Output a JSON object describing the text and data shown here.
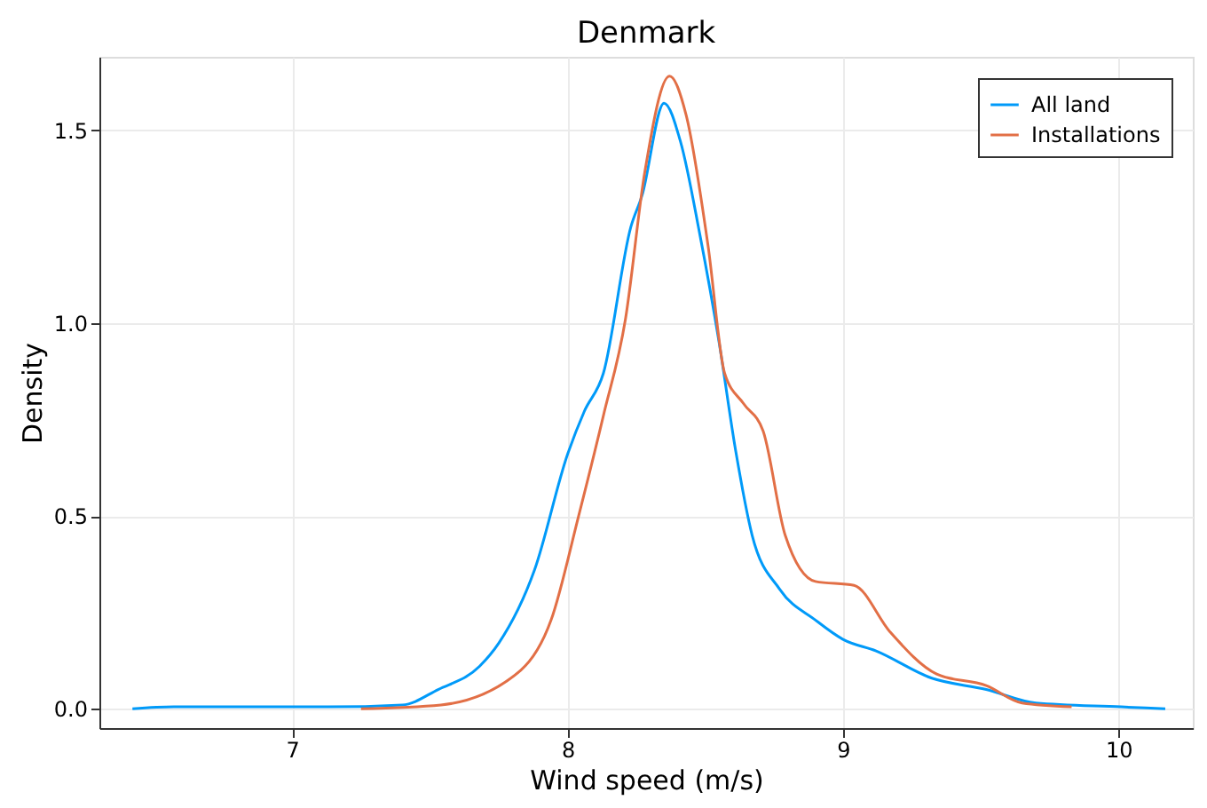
{
  "chart_data": {
    "type": "line",
    "title": "Denmark",
    "xlabel": "Wind speed (m/s)",
    "ylabel": "Density",
    "xlim": [
      6.3,
      10.27
    ],
    "ylim": [
      -0.05,
      1.69
    ],
    "xticks": [
      7,
      8,
      9,
      10
    ],
    "yticks": [
      {
        "value": 0,
        "label": "0.0"
      },
      {
        "value": 0.5,
        "label": "0.5"
      },
      {
        "value": 1,
        "label": "1.0"
      },
      {
        "value": 1.5,
        "label": "1.5"
      }
    ],
    "grid": true,
    "legend": "top right",
    "line_style": "solid",
    "marker": "none",
    "series": [
      {
        "name": "All land",
        "color": "#009af9",
        "x": [
          6.42,
          6.57,
          6.8,
          7.13,
          7.4,
          7.53,
          7.68,
          7.75,
          7.88,
          8.0,
          8.06,
          8.13,
          8.23,
          8.27,
          8.35,
          8.41,
          8.48,
          8.55,
          8.61,
          8.67,
          8.77,
          8.9,
          9.0,
          9.12,
          9.32,
          9.52,
          9.7,
          10.01,
          10.17
        ],
        "values": [
          0,
          0.005,
          0.005,
          0.005,
          0.01,
          0.05,
          0.11,
          0.17,
          0.36,
          0.66,
          0.77,
          0.87,
          1.25,
          1.33,
          1.57,
          1.47,
          1.23,
          0.95,
          0.67,
          0.45,
          0.31,
          0.23,
          0.18,
          0.15,
          0.08,
          0.05,
          0.015,
          0.005,
          0
        ]
      },
      {
        "name": "Installations",
        "color": "#e26f46",
        "x": [
          7.25,
          7.54,
          7.83,
          7.94,
          8.04,
          8.13,
          8.21,
          8.28,
          8.37,
          8.43,
          8.51,
          8.57,
          8.64,
          8.71,
          8.79,
          8.9,
          9.04,
          9.17,
          9.34,
          9.52,
          9.65,
          9.83
        ],
        "values": [
          0,
          0.01,
          0.1,
          0.23,
          0.5,
          0.76,
          1.01,
          1.39,
          1.64,
          1.54,
          1.2,
          0.87,
          0.79,
          0.72,
          0.45,
          0.33,
          0.32,
          0.2,
          0.09,
          0.06,
          0.015,
          0.005
        ]
      }
    ]
  }
}
